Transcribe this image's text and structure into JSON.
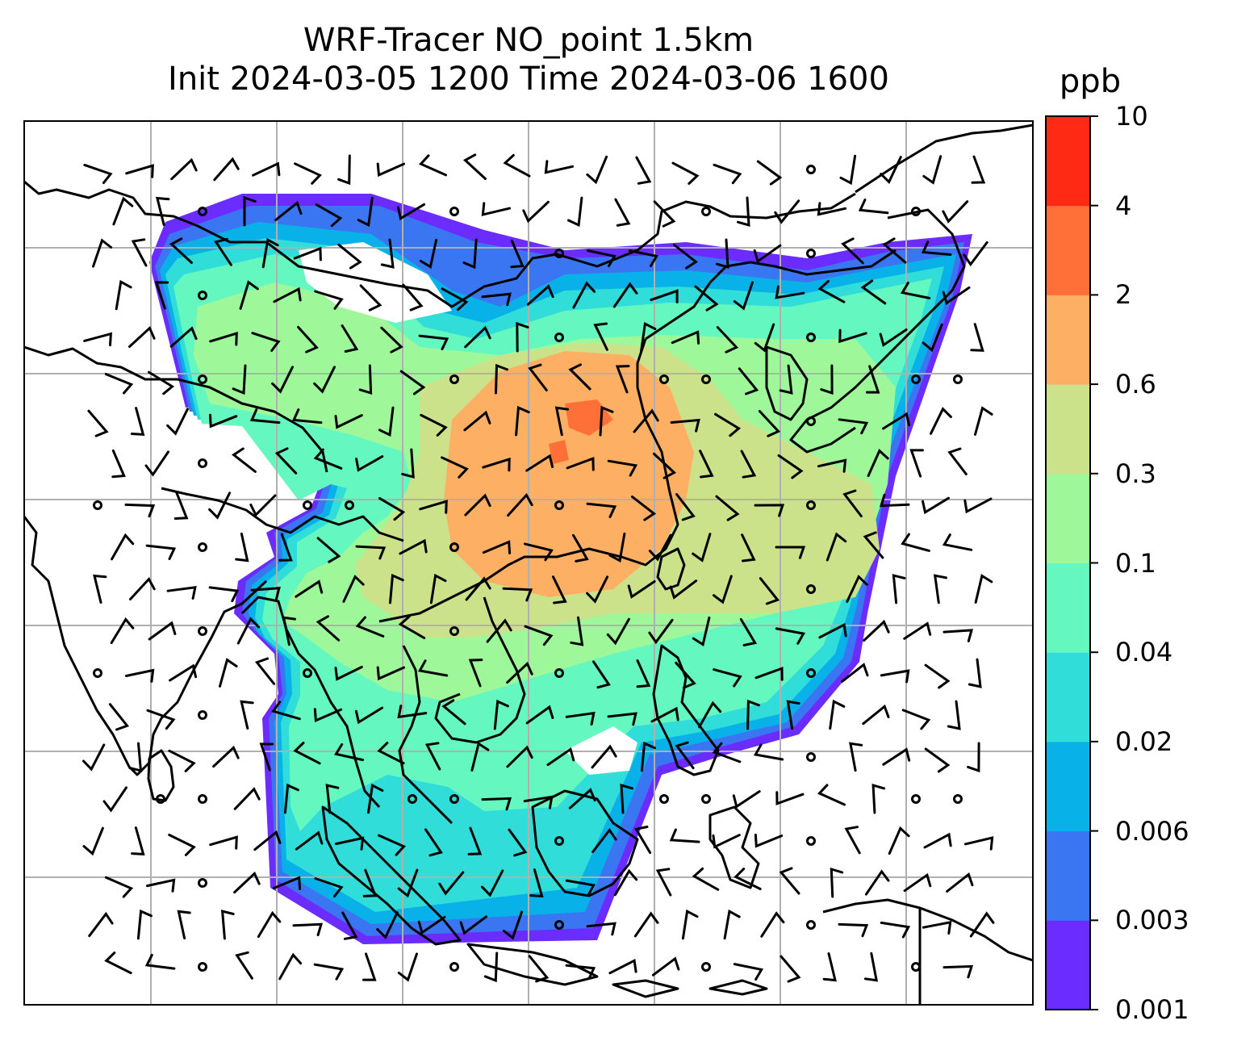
{
  "title_line1": "WRF-Tracer NO_point 1.5km",
  "title_line2": "Init 2024-03-05 1200 Time 2024-03-06 1600",
  "colorbar": {
    "unit": "ppb",
    "levels": [
      "0.001",
      "0.003",
      "0.006",
      "0.02",
      "0.04",
      "0.1",
      "0.3",
      "0.6",
      "2",
      "4",
      "10"
    ],
    "colors": [
      "#6a2cff",
      "#3a76f2",
      "#08b2e8",
      "#30ddd8",
      "#64f8c0",
      "#9ef89a",
      "#cce28a",
      "#fdb064",
      "#ff7038",
      "#ff2a14"
    ]
  },
  "map": {
    "gridlines": true,
    "background": "#ffffff",
    "coastline_color": "#000000",
    "overlay": "wind barbs"
  }
}
